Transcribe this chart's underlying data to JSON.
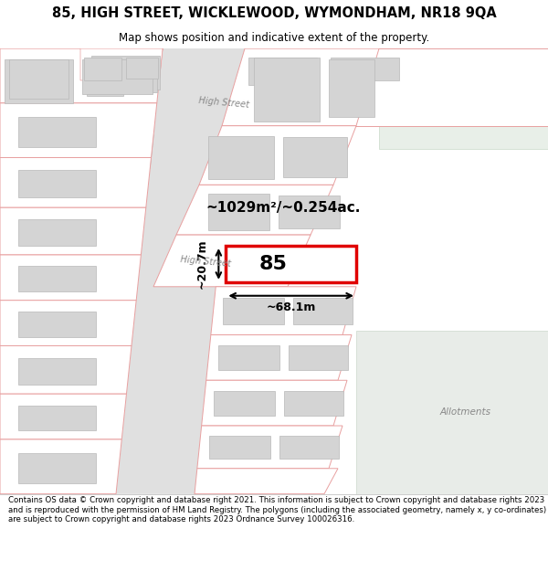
{
  "title": "85, HIGH STREET, WICKLEWOOD, WYMONDHAM, NR18 9QA",
  "subtitle": "Map shows position and indicative extent of the property.",
  "footer": "Contains OS data © Crown copyright and database right 2021. This information is subject to Crown copyright and database rights 2023 and is reproduced with the permission of HM Land Registry. The polygons (including the associated geometry, namely x, y co-ordinates) are subject to Crown copyright and database rights 2023 Ordnance Survey 100026316.",
  "map_bg": "#f8f8f8",
  "road_fill": "#e0e0e0",
  "plot_ec": "#e8a0a0",
  "plot_fc": "#ffffff",
  "building_fc": "#d4d4d4",
  "building_ec": "#b8b8b8",
  "highlight_color": "#e00000",
  "green_fc": "#e8efe8",
  "green_ec": "#c8d8c8",
  "road_label_color": "#888888",
  "road_label": "High Street",
  "property_label": "85",
  "area_label": "~1029m²/~0.254ac.",
  "width_label": "~68.1m",
  "height_label": "~20.7m",
  "allotments_label": "Allotments",
  "allotments_color": "#888888"
}
